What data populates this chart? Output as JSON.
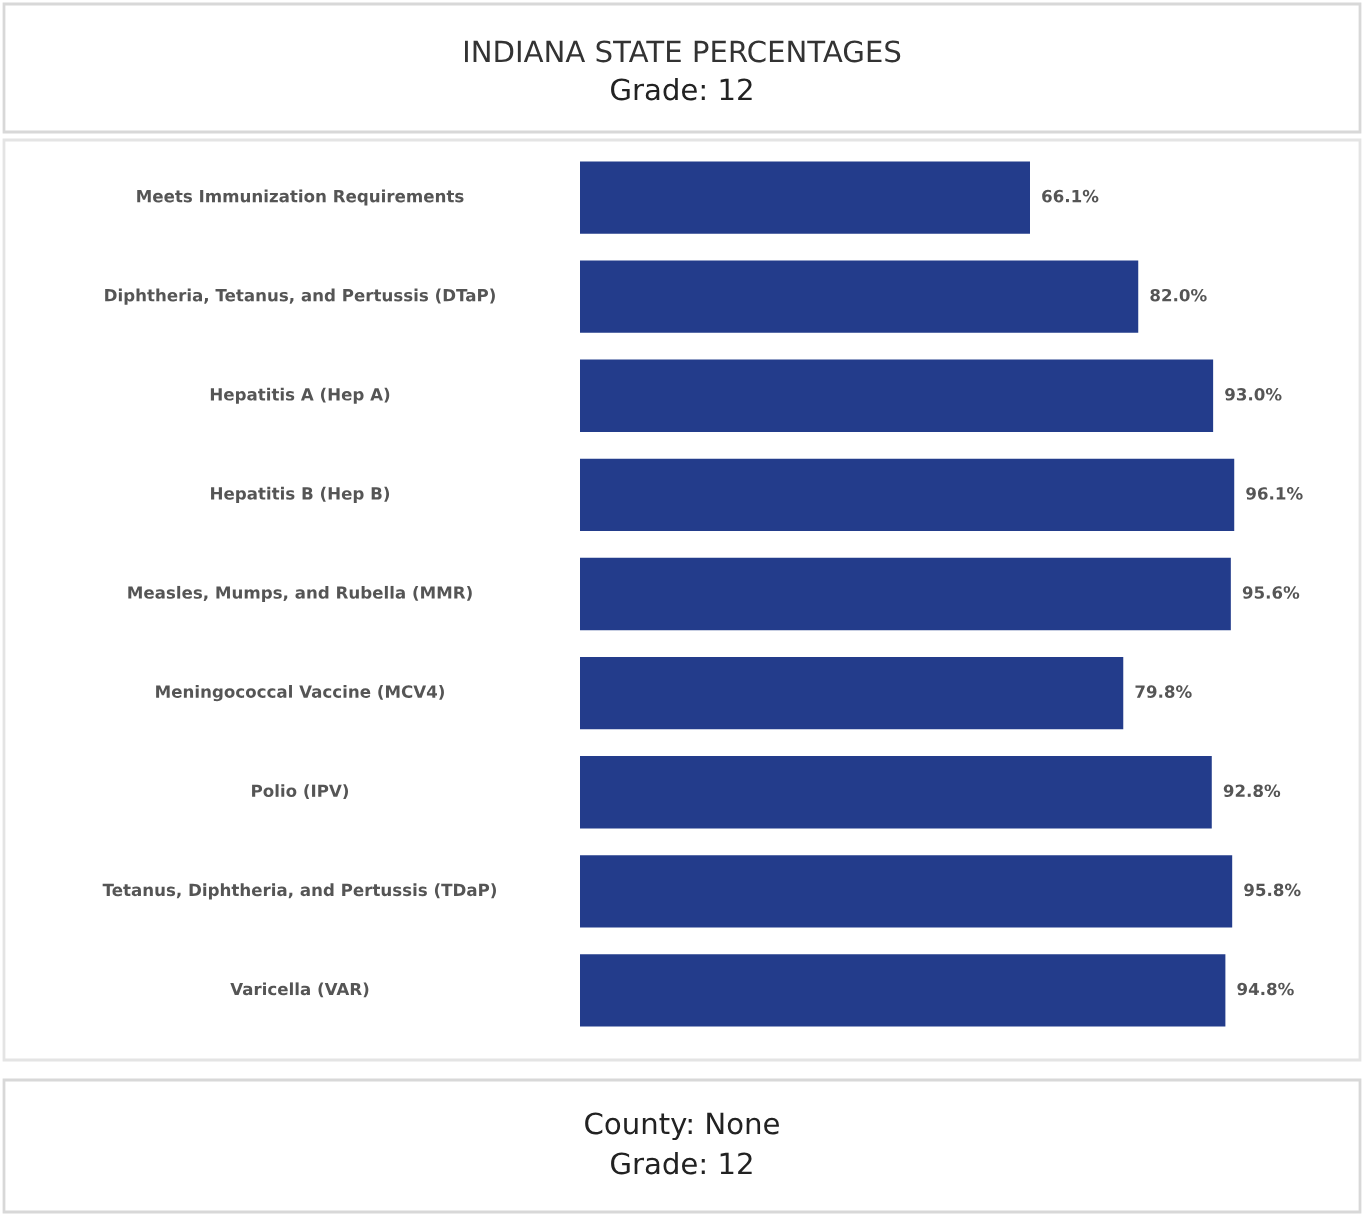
{
  "chart_data": {
    "type": "bar",
    "orientation": "horizontal",
    "title": "INDIANA STATE PERCENTAGES",
    "subtitle": "Grade: 12",
    "categories": [
      "Meets Immunization Requirements",
      "Diphtheria, Tetanus, and Pertussis (DTaP)",
      "Hepatitis A (Hep A)",
      "Hepatitis B (Hep B)",
      "Measles, Mumps, and Rubella (MMR)",
      "Meningococcal Vaccine (MCV4)",
      "Polio (IPV)",
      "Tetanus, Diphtheria, and Pertussis (TDaP)",
      "Varicella (VAR)"
    ],
    "values": [
      66.1,
      82.0,
      93.0,
      96.1,
      95.6,
      79.8,
      92.8,
      95.8,
      94.8
    ],
    "value_labels": [
      "66.1%",
      "82.0%",
      "93.0%",
      "96.1%",
      "95.6%",
      "79.8%",
      "92.8%",
      "95.8%",
      "94.8%"
    ],
    "color": "#233c8b",
    "grid": false,
    "legend": false,
    "annotations": [
      "County: None",
      "Grade: 12"
    ]
  }
}
